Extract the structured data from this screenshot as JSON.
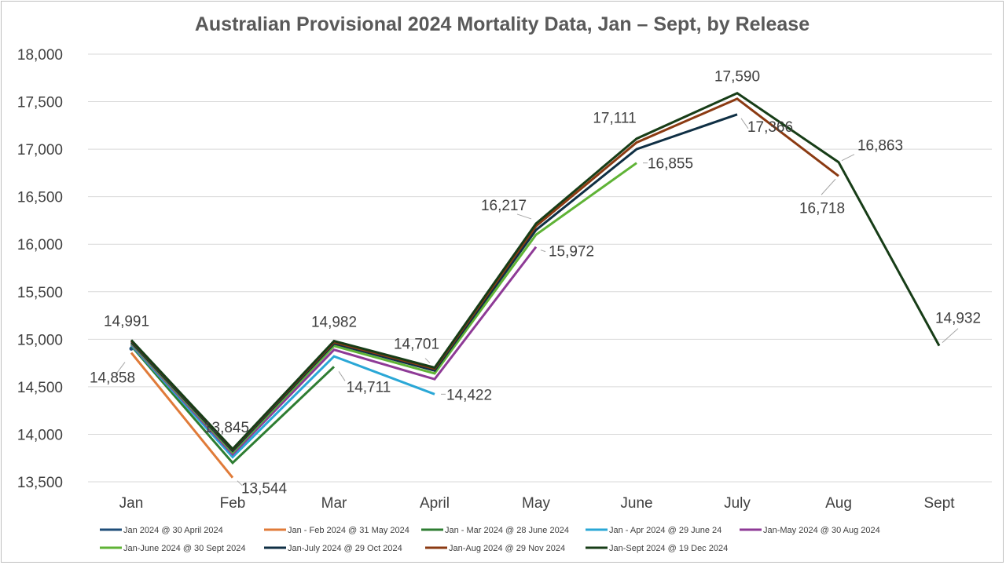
{
  "chart_data": {
    "type": "line",
    "title": "Australian Provisional 2024 Mortality Data, Jan – Sept, by Release",
    "xlabel": "",
    "ylabel": "",
    "categories": [
      "Jan",
      "Feb",
      "Mar",
      "April",
      "May",
      "June",
      "July",
      "Aug",
      "Sept"
    ],
    "ylim": [
      13500,
      18000
    ],
    "yticks": [
      13500,
      14000,
      14500,
      15000,
      15500,
      16000,
      16500,
      17000,
      17500,
      18000
    ],
    "ytick_labels": [
      "13,500",
      "14,000",
      "14,500",
      "15,000",
      "15,500",
      "16,000",
      "16,500",
      "17,000",
      "17,500",
      "18,000"
    ],
    "grid": true,
    "legend_position": "bottom",
    "series": [
      {
        "name": "Jan 2024 @ 30 April 2024",
        "color": "#1f4e79",
        "values": [
          14900,
          null,
          null,
          null,
          null,
          null,
          null,
          null,
          null
        ]
      },
      {
        "name": "Jan - Feb 2024 @ 31 May 2024",
        "color": "#e07b39",
        "values": [
          14858,
          13544,
          null,
          null,
          null,
          null,
          null,
          null,
          null
        ]
      },
      {
        "name": "Jan - Mar 2024 @ 28 June 2024",
        "color": "#2e7d32",
        "values": [
          14930,
          13700,
          14711,
          null,
          null,
          null,
          null,
          null,
          null
        ]
      },
      {
        "name": "Jan - Apr 2024 @ 29 June 24",
        "color": "#2aa7d6",
        "values": [
          14940,
          13760,
          14820,
          14422,
          null,
          null,
          null,
          null,
          null
        ]
      },
      {
        "name": "Jan-May 2024 @ 30 Aug 2024",
        "color": "#8e3a96",
        "values": [
          14950,
          13790,
          14890,
          14580,
          15972,
          null,
          null,
          null,
          null
        ]
      },
      {
        "name": "Jan-June 2024 @ 30 Sept 2024",
        "color": "#5fb336",
        "values": [
          14960,
          13810,
          14930,
          14640,
          16100,
          16855,
          null,
          null,
          null
        ]
      },
      {
        "name": "Jan-July 2024 @ 29 Oct 2024",
        "color": "#0f2f44",
        "values": [
          14970,
          13825,
          14955,
          14670,
          16150,
          17000,
          17366,
          null,
          null
        ]
      },
      {
        "name": "Jan-Aug 2024 @ 29 Nov 2024",
        "color": "#8b3a12",
        "values": [
          14985,
          13840,
          14970,
          14690,
          16190,
          17070,
          17530,
          16718,
          null
        ]
      },
      {
        "name": "Jan-Sept 2024 @ 19 Dec 2024",
        "color": "#173d17",
        "values": [
          14991,
          13845,
          14982,
          14701,
          16217,
          17111,
          17590,
          16863,
          14932
        ]
      }
    ],
    "data_labels": [
      {
        "text": "14,991",
        "x": "Jan",
        "y": 14991
      },
      {
        "text": "14,858",
        "x": "Jan",
        "y": 14858
      },
      {
        "text": "13,845",
        "x": "Feb",
        "y": 13845
      },
      {
        "text": "13,544",
        "x": "Feb",
        "y": 13544
      },
      {
        "text": "14,982",
        "x": "Mar",
        "y": 14982
      },
      {
        "text": "14,711",
        "x": "Mar",
        "y": 14711
      },
      {
        "text": "14,701",
        "x": "April",
        "y": 14701
      },
      {
        "text": "14,422",
        "x": "April",
        "y": 14422
      },
      {
        "text": "16,217",
        "x": "May",
        "y": 16217
      },
      {
        "text": "15,972",
        "x": "May",
        "y": 15972
      },
      {
        "text": "17,111",
        "x": "June",
        "y": 17111
      },
      {
        "text": "16,855",
        "x": "June",
        "y": 16855
      },
      {
        "text": "17,590",
        "x": "July",
        "y": 17590
      },
      {
        "text": "17,366",
        "x": "July",
        "y": 17366
      },
      {
        "text": "16,863",
        "x": "Aug",
        "y": 16863
      },
      {
        "text": "16,718",
        "x": "Aug",
        "y": 16718
      },
      {
        "text": "14,932",
        "x": "Sept",
        "y": 14932
      }
    ]
  }
}
